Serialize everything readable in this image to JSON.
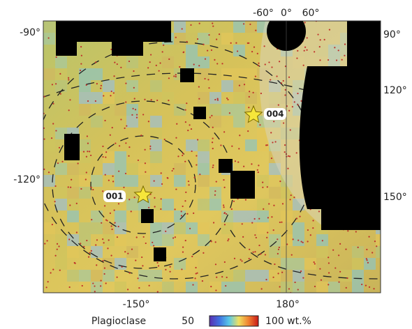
{
  "map": {
    "left_labels": [
      "-90°",
      "-120°"
    ],
    "right_labels": [
      "90°",
      "120°",
      "150°"
    ],
    "top_labels": [
      "-60°",
      "0°",
      "60°"
    ],
    "bottom_labels": [
      "-150°",
      "180°"
    ],
    "sites": [
      "001",
      "004"
    ],
    "colorbar": {
      "title": "Plagioclase",
      "min": "50",
      "max": "100 wt.%"
    }
  }
}
